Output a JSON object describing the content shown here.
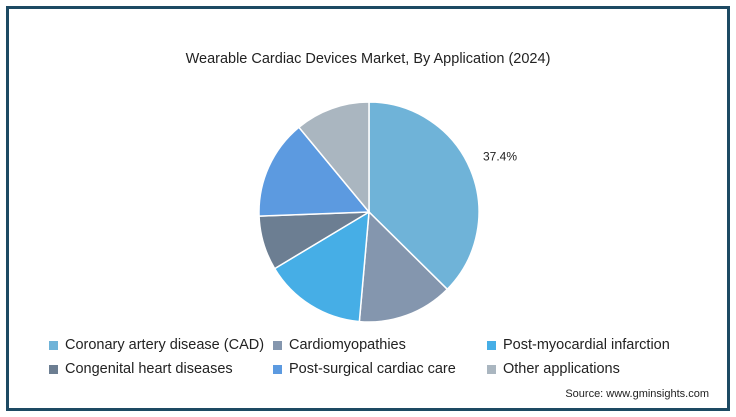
{
  "chart_data": {
    "type": "pie",
    "title": "Wearable Cardiac Devices Market, By Application (2024)",
    "categories": [
      "Coronary artery disease (CAD)",
      "Cardiomyopathies",
      "Post-myocardial infarction",
      "Congenital heart diseases",
      "Post-surgical cardiac care",
      "Other applications"
    ],
    "values": [
      37.4,
      14.0,
      15.0,
      8.0,
      14.6,
      11.0
    ],
    "colors": [
      "#6fb3d8",
      "#8496ae",
      "#46aee6",
      "#6c7e92",
      "#5c9ae0",
      "#aab6c0"
    ],
    "data_labels": [
      "37.4%",
      "",
      "",
      "",
      "",
      ""
    ],
    "legend_position": "bottom"
  },
  "source": "Source: www.gminsights.com"
}
